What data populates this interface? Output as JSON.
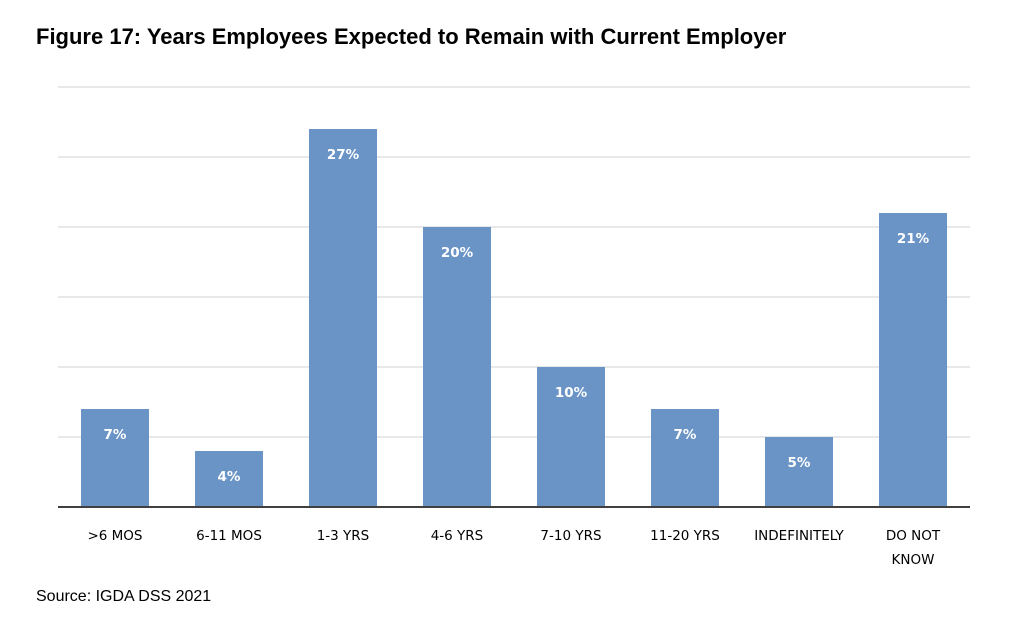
{
  "title": "Figure 17: Years Employees Expected to Remain with Current Employer",
  "source": "Source: IGDA DSS 2021",
  "colors": {
    "bar": "#6a93c6",
    "grid": "#d0d0d0",
    "axis": "#404040"
  },
  "chart_data": {
    "type": "bar",
    "categories": [
      ">6 MOS",
      "6-11 MOS",
      "1-3 YRS",
      "4-6 YRS",
      "7-10 YRS",
      "11-20 YRS",
      "INDEFINITELY",
      "DO NOT KNOW"
    ],
    "values": [
      7,
      4,
      27,
      20,
      10,
      7,
      5,
      21
    ],
    "value_labels": [
      "7%",
      "4%",
      "27%",
      "20%",
      "10%",
      "7%",
      "5%",
      "21%"
    ],
    "ylim": [
      0,
      30
    ],
    "grid": true
  }
}
